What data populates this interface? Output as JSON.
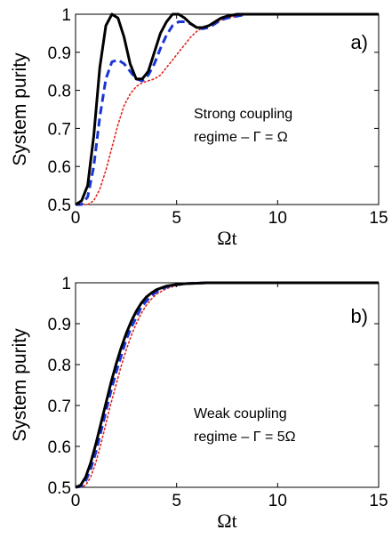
{
  "chart_data": [
    {
      "type": "line",
      "panel_label": "a)",
      "xlabel": "Ωt",
      "ylabel": "System purity",
      "xlim": [
        0,
        15
      ],
      "ylim": [
        0.5,
        1
      ],
      "xticks": [
        0,
        5,
        10,
        15
      ],
      "yticks": [
        0.5,
        0.6,
        0.7,
        0.8,
        0.9,
        1
      ],
      "ytick_labels": [
        "0.5",
        "0.6",
        "0.7",
        "0.8",
        "0.9",
        "1"
      ],
      "annotation": [
        "Strong coupling",
        "regime – Γ = Ω"
      ],
      "grid": false,
      "series": [
        {
          "style": "solid",
          "color": "#000000",
          "x": [
            0,
            0.3,
            0.6,
            0.9,
            1.2,
            1.5,
            1.8,
            2.1,
            2.4,
            2.7,
            3.0,
            3.3,
            3.6,
            3.9,
            4.2,
            4.5,
            4.8,
            5.1,
            5.4,
            5.7,
            6.0,
            6.3,
            6.6,
            6.9,
            7.2,
            7.5,
            8.0,
            8.5,
            9.0,
            10,
            11,
            12,
            13,
            14,
            15
          ],
          "y": [
            0.5,
            0.51,
            0.55,
            0.68,
            0.86,
            0.97,
            1.0,
            0.99,
            0.94,
            0.87,
            0.83,
            0.83,
            0.85,
            0.9,
            0.95,
            0.98,
            1.0,
            1.0,
            0.99,
            0.975,
            0.965,
            0.965,
            0.97,
            0.98,
            0.99,
            0.995,
            1.0,
            1.0,
            1.0,
            1.0,
            1.0,
            1.0,
            1.0,
            1.0,
            1.0
          ]
        },
        {
          "style": "dashed",
          "color": "#1a35d6",
          "x": [
            0,
            0.3,
            0.6,
            0.9,
            1.2,
            1.5,
            1.8,
            2.1,
            2.4,
            2.7,
            3.0,
            3.3,
            3.6,
            3.9,
            4.2,
            4.5,
            4.8,
            5.1,
            5.4,
            5.7,
            6.0,
            6.3,
            6.6,
            6.9,
            7.2,
            7.5,
            8.0,
            8.5,
            9.0,
            10,
            11,
            12,
            13,
            14,
            15
          ],
          "y": [
            0.5,
            0.5,
            0.52,
            0.6,
            0.73,
            0.83,
            0.875,
            0.88,
            0.87,
            0.85,
            0.83,
            0.825,
            0.84,
            0.87,
            0.91,
            0.945,
            0.97,
            0.98,
            0.98,
            0.975,
            0.965,
            0.962,
            0.965,
            0.975,
            0.985,
            0.99,
            0.995,
            1.0,
            1.0,
            1.0,
            1.0,
            1.0,
            1.0,
            1.0,
            1.0
          ]
        },
        {
          "style": "dotted",
          "color": "#e0241c",
          "x": [
            0,
            0.3,
            0.6,
            0.9,
            1.2,
            1.5,
            1.8,
            2.1,
            2.4,
            2.7,
            3.0,
            3.3,
            3.6,
            3.9,
            4.2,
            4.5,
            4.8,
            5.1,
            5.4,
            5.7,
            6.0,
            6.3,
            6.6,
            6.9,
            7.2,
            7.5,
            8.0,
            8.5,
            9.0,
            10,
            11,
            12,
            13,
            14,
            15
          ],
          "y": [
            0.5,
            0.5,
            0.5,
            0.51,
            0.54,
            0.59,
            0.65,
            0.71,
            0.76,
            0.79,
            0.81,
            0.82,
            0.825,
            0.83,
            0.84,
            0.86,
            0.88,
            0.9,
            0.92,
            0.94,
            0.955,
            0.965,
            0.97,
            0.975,
            0.985,
            0.99,
            0.995,
            1.0,
            1.0,
            1.0,
            1.0,
            1.0,
            1.0,
            1.0,
            1.0
          ]
        }
      ]
    },
    {
      "type": "line",
      "panel_label": "b)",
      "xlabel": "Ωt",
      "ylabel": "System purity",
      "xlim": [
        0,
        15
      ],
      "ylim": [
        0.5,
        1
      ],
      "xticks": [
        0,
        5,
        10,
        15
      ],
      "yticks": [
        0.5,
        0.6,
        0.7,
        0.8,
        0.9,
        1
      ],
      "ytick_labels": [
        "0.5",
        "0.6",
        "0.7",
        "0.8",
        "0.9",
        "1"
      ],
      "annotation": [
        "Weak coupling",
        "regime – Γ = 5Ω"
      ],
      "grid": false,
      "series": [
        {
          "style": "solid",
          "color": "#000000",
          "x": [
            0,
            0.25,
            0.5,
            0.75,
            1.0,
            1.25,
            1.5,
            1.75,
            2.0,
            2.25,
            2.5,
            2.75,
            3.0,
            3.25,
            3.5,
            3.75,
            4.0,
            4.5,
            5.0,
            5.5,
            6.0,
            6.5,
            7.0,
            8.0,
            9.0,
            10,
            12,
            15
          ],
          "y": [
            0.5,
            0.505,
            0.525,
            0.56,
            0.605,
            0.655,
            0.705,
            0.755,
            0.8,
            0.84,
            0.875,
            0.905,
            0.93,
            0.95,
            0.965,
            0.975,
            0.983,
            0.992,
            0.996,
            0.998,
            0.999,
            1.0,
            1.0,
            1.0,
            1.0,
            1.0,
            1.0,
            1.0
          ]
        },
        {
          "style": "dashed",
          "color": "#1a35d6",
          "x": [
            0,
            0.25,
            0.5,
            0.75,
            1.0,
            1.25,
            1.5,
            1.75,
            2.0,
            2.25,
            2.5,
            2.75,
            3.0,
            3.25,
            3.5,
            3.75,
            4.0,
            4.5,
            5.0,
            5.5,
            6.0,
            6.5,
            7.0,
            8.0,
            9.0,
            10,
            12,
            15
          ],
          "y": [
            0.5,
            0.502,
            0.515,
            0.545,
            0.585,
            0.635,
            0.685,
            0.735,
            0.78,
            0.82,
            0.86,
            0.89,
            0.915,
            0.94,
            0.955,
            0.968,
            0.978,
            0.99,
            0.995,
            0.998,
            0.999,
            1.0,
            1.0,
            1.0,
            1.0,
            1.0,
            1.0,
            1.0
          ]
        },
        {
          "style": "dotted",
          "color": "#e0241c",
          "x": [
            0,
            0.25,
            0.5,
            0.75,
            1.0,
            1.25,
            1.5,
            1.75,
            2.0,
            2.25,
            2.5,
            2.75,
            3.0,
            3.25,
            3.5,
            3.75,
            4.0,
            4.5,
            5.0,
            5.5,
            6.0,
            6.5,
            7.0,
            8.0,
            9.0,
            10,
            12,
            15
          ],
          "y": [
            0.5,
            0.5,
            0.505,
            0.525,
            0.56,
            0.605,
            0.655,
            0.705,
            0.75,
            0.795,
            0.835,
            0.87,
            0.9,
            0.925,
            0.945,
            0.96,
            0.972,
            0.986,
            0.993,
            0.997,
            0.999,
            1.0,
            1.0,
            1.0,
            1.0,
            1.0,
            1.0,
            1.0
          ]
        }
      ]
    }
  ]
}
